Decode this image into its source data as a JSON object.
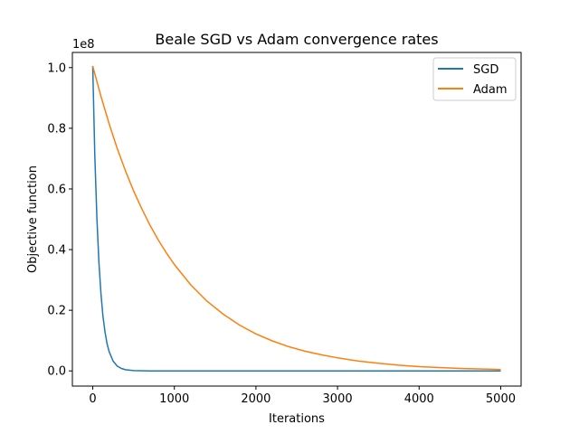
{
  "chart_data": {
    "type": "line",
    "title": "Beale SGD vs Adam convergence rates",
    "xlabel": "Iterations",
    "ylabel": "Objective function",
    "y_offset_label": "1e8",
    "xlim": [
      -250,
      5250
    ],
    "ylim": [
      -0.05,
      1.05
    ],
    "xticks": [
      0,
      1000,
      2000,
      3000,
      4000,
      5000
    ],
    "xtick_labels": [
      "0",
      "1000",
      "2000",
      "3000",
      "4000",
      "5000"
    ],
    "yticks": [
      0.0,
      0.2,
      0.4,
      0.6,
      0.8,
      1.0
    ],
    "ytick_labels": [
      "0.0",
      "0.2",
      "0.4",
      "0.6",
      "0.8",
      "1.0"
    ],
    "grid": false,
    "legend_position": "top-right",
    "series": [
      {
        "name": "SGD",
        "color": "#1f77b4",
        "x": [
          0,
          25,
          50,
          75,
          100,
          125,
          150,
          175,
          200,
          250,
          300,
          350,
          400,
          500,
          700,
          1000,
          2000,
          3000,
          4000,
          5000
        ],
        "y": [
          1.005,
          0.71,
          0.505,
          0.36,
          0.255,
          0.18,
          0.128,
          0.09,
          0.064,
          0.032,
          0.016,
          0.008,
          0.004,
          0.001,
          0.0,
          0.0,
          0.0,
          0.0,
          0.0,
          0.0
        ]
      },
      {
        "name": "Adam",
        "color": "#ff7f0e",
        "x": [
          0,
          100,
          200,
          300,
          400,
          500,
          600,
          700,
          800,
          900,
          1000,
          1200,
          1400,
          1600,
          1800,
          2000,
          2200,
          2400,
          2600,
          2800,
          3000,
          3250,
          3500,
          3750,
          4000,
          4500,
          5000
        ],
        "y": [
          1.005,
          0.905,
          0.815,
          0.733,
          0.66,
          0.594,
          0.535,
          0.481,
          0.433,
          0.39,
          0.351,
          0.284,
          0.23,
          0.187,
          0.151,
          0.122,
          0.099,
          0.08,
          0.065,
          0.053,
          0.043,
          0.033,
          0.025,
          0.019,
          0.014,
          0.008,
          0.005
        ]
      }
    ]
  }
}
